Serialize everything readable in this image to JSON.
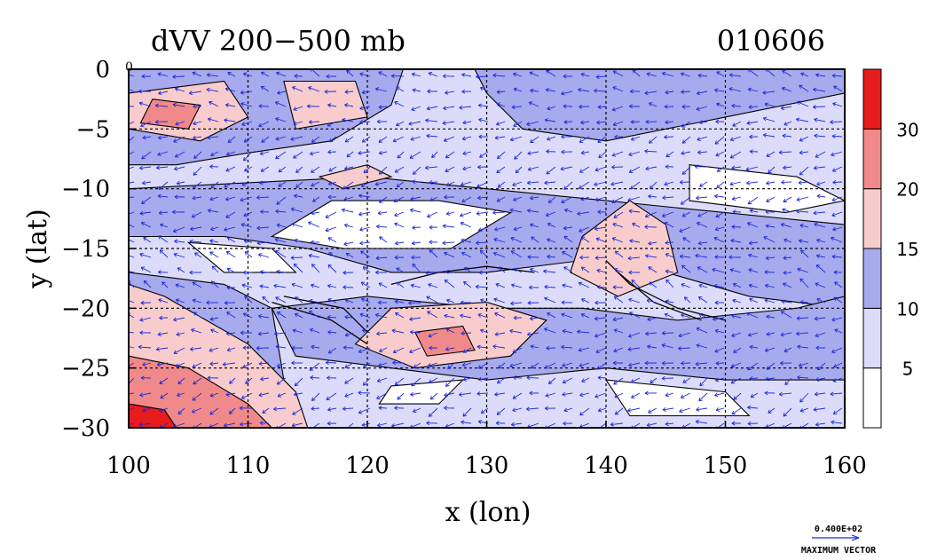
{
  "chart_data": {
    "type": "heatmap",
    "title": "dVV 200−500 mb",
    "date_label": "010606",
    "xlabel": "x (lon)",
    "ylabel": "y (lat)",
    "xlim": [
      100,
      160
    ],
    "ylim": [
      -30,
      0
    ],
    "x_ticks": [
      100,
      110,
      120,
      130,
      140,
      150,
      160
    ],
    "y_ticks": [
      0,
      -5,
      -10,
      -15,
      -20,
      -25,
      -30
    ],
    "x_tick_labels": [
      "100",
      "110",
      "120",
      "130",
      "140",
      "150",
      "160"
    ],
    "y_tick_labels": [
      "0",
      "−5",
      "−10",
      "−15",
      "−20",
      "−25",
      "−30"
    ],
    "grid": true,
    "colorbar": {
      "levels": [
        5,
        10,
        15,
        20,
        30
      ],
      "tick_labels": [
        "5",
        "10",
        "15",
        "20",
        "30"
      ],
      "colors": [
        "#ffffff",
        "#dcdcfa",
        "#a8aaee",
        "#f8cccc",
        "#f08a8a",
        "#e81c1c"
      ]
    },
    "vector_legend": {
      "value_label": "0.400E+02",
      "caption": "MAXIMUM VECTOR"
    },
    "corner_label": "0"
  }
}
